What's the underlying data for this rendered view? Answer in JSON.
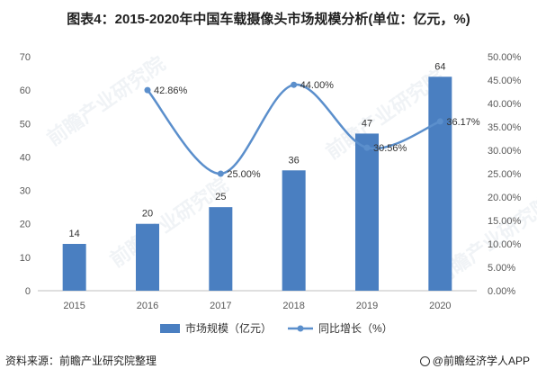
{
  "title": "图表4：2015-2020年中国车载摄像头市场规模分析(单位：亿元，%)",
  "source": "资料来源：前瞻产业研究院整理",
  "brand": "@前瞻经济学人APP",
  "watermark": "前瞻产业研究院",
  "colors": {
    "bar": "#4a7fc1",
    "line": "#5b8fcc",
    "axis_text": "#595959",
    "grid": "#d9d9d9"
  },
  "chart_data": {
    "type": "bar",
    "categories": [
      "2015",
      "2016",
      "2017",
      "2018",
      "2019",
      "2020"
    ],
    "series": [
      {
        "name": "市场规模（亿元）",
        "type": "bar",
        "axis": "left",
        "values": [
          14,
          20,
          25,
          36,
          47,
          64
        ],
        "labels": [
          "14",
          "20",
          "25",
          "36",
          "47",
          "64"
        ]
      },
      {
        "name": "同比增长（%）",
        "type": "line",
        "axis": "right",
        "smooth": true,
        "values": [
          null,
          42.86,
          25.0,
          44.0,
          30.56,
          36.17
        ],
        "labels": [
          "",
          "42.86%",
          "25.00%",
          "44.00%",
          "30.56%",
          "36.17%"
        ]
      }
    ],
    "y_left": {
      "min": 0,
      "max": 70,
      "ticks": [
        "0",
        "10",
        "20",
        "30",
        "40",
        "50",
        "60",
        "70"
      ]
    },
    "y_right": {
      "min": 0,
      "max": 50,
      "ticks": [
        "0.00%",
        "5.00%",
        "10.00%",
        "15.00%",
        "20.00%",
        "25.00%",
        "30.00%",
        "35.00%",
        "40.00%",
        "45.00%",
        "50.00%"
      ]
    },
    "grid": false,
    "legend": "bottom"
  }
}
